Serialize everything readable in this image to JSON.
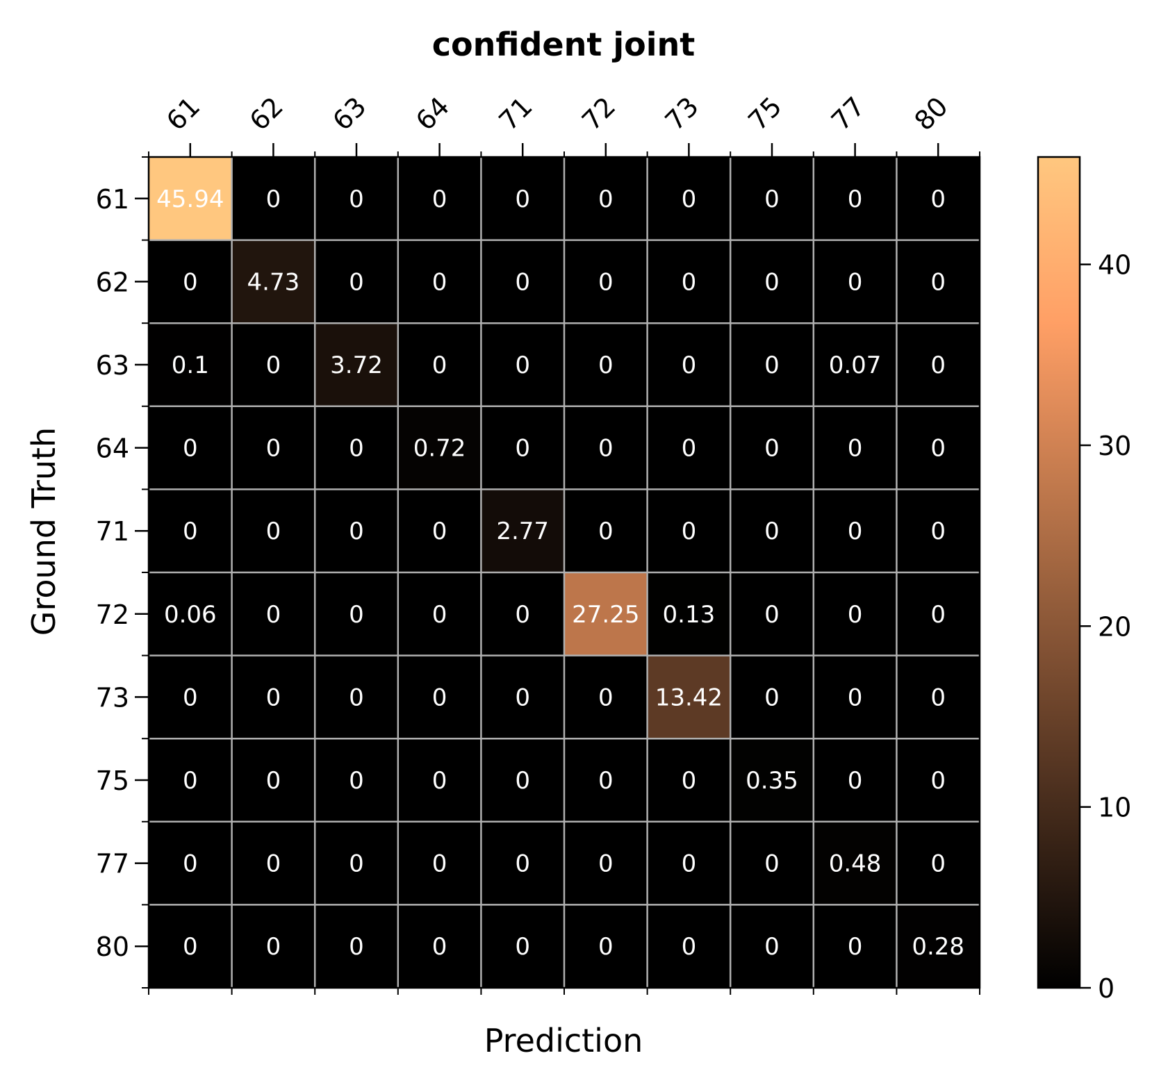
{
  "chart_data": {
    "type": "heatmap",
    "title": "confident joint",
    "xlabel": "Prediction",
    "ylabel": "Ground Truth",
    "x_categories": [
      "61",
      "62",
      "63",
      "64",
      "71",
      "72",
      "73",
      "75",
      "77",
      "80"
    ],
    "y_categories": [
      "61",
      "62",
      "63",
      "64",
      "71",
      "72",
      "73",
      "75",
      "77",
      "80"
    ],
    "values": [
      [
        45.94,
        0,
        0,
        0,
        0,
        0,
        0,
        0,
        0,
        0
      ],
      [
        0,
        4.73,
        0,
        0,
        0,
        0,
        0,
        0,
        0,
        0
      ],
      [
        0.1,
        0,
        3.72,
        0,
        0,
        0,
        0,
        0,
        0.07,
        0
      ],
      [
        0,
        0,
        0,
        0.72,
        0,
        0,
        0,
        0,
        0,
        0
      ],
      [
        0,
        0,
        0,
        0,
        2.77,
        0,
        0,
        0,
        0,
        0
      ],
      [
        0.06,
        0,
        0,
        0,
        0,
        27.25,
        0.13,
        0,
        0,
        0
      ],
      [
        0,
        0,
        0,
        0,
        0,
        0,
        13.42,
        0,
        0,
        0
      ],
      [
        0,
        0,
        0,
        0,
        0,
        0,
        0,
        0.35,
        0,
        0
      ],
      [
        0,
        0,
        0,
        0,
        0,
        0,
        0,
        0,
        0.48,
        0
      ],
      [
        0,
        0,
        0,
        0,
        0,
        0,
        0,
        0,
        0,
        0.28
      ]
    ],
    "colormap": "copper",
    "colorbar": {
      "min": 0,
      "max": 45.94,
      "ticks": [
        0,
        10,
        20,
        30,
        40
      ]
    },
    "x_tick_position": "top",
    "grid": true,
    "grid_color": "#b0b0b0"
  }
}
